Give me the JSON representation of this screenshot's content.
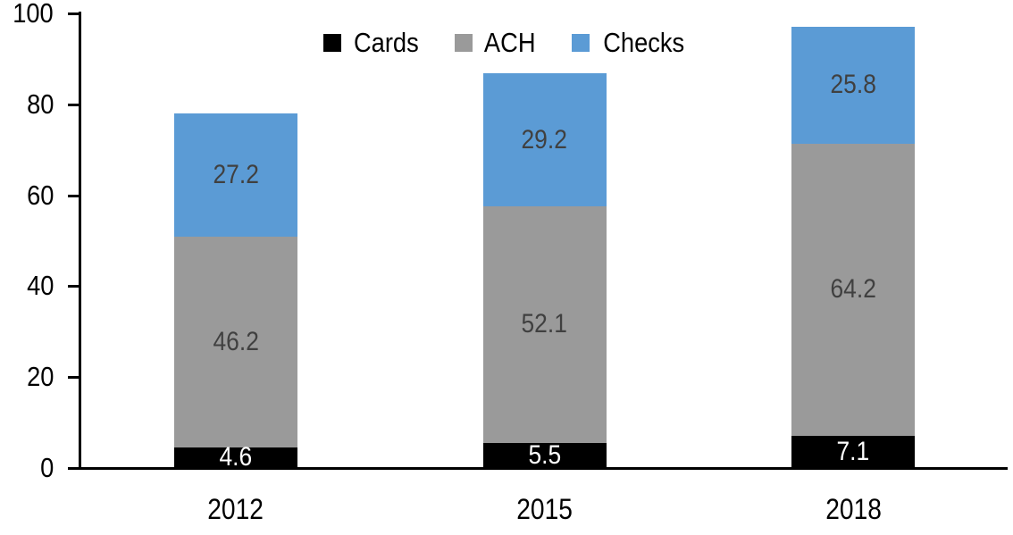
{
  "chart_data": {
    "type": "bar",
    "stacked": true,
    "categories": [
      "2012",
      "2015",
      "2018"
    ],
    "series": [
      {
        "name": "Cards",
        "color": "#000000",
        "label_color": "#FFFFFF",
        "values": [
          4.6,
          5.5,
          7.1
        ]
      },
      {
        "name": "ACH",
        "color": "#9A9A9A",
        "label_color": "#404040",
        "values": [
          46.2,
          52.1,
          64.2
        ]
      },
      {
        "name": "Checks",
        "color": "#5B9BD5",
        "label_color": "#404040",
        "values": [
          27.2,
          29.2,
          25.8
        ]
      }
    ],
    "totals": [
      78.0,
      86.8,
      97.1
    ],
    "title": "",
    "xlabel": "",
    "ylabel": "",
    "ylim": [
      0,
      100
    ],
    "yticks": [
      0,
      20,
      40,
      60,
      80,
      100
    ],
    "grid": false,
    "legend_position": "top-center",
    "value_label_format": "one-decimal",
    "axis_color": "#000000",
    "background_color": "#FFFFFF"
  }
}
